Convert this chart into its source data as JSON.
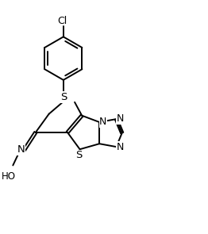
{
  "background_color": "#ffffff",
  "line_color": "#000000",
  "line_width": 1.4,
  "font_size": 8.5,
  "figsize": [
    2.62,
    2.95
  ],
  "dpi": 100,
  "xlim": [
    0,
    10
  ],
  "ylim": [
    0,
    11.3
  ]
}
